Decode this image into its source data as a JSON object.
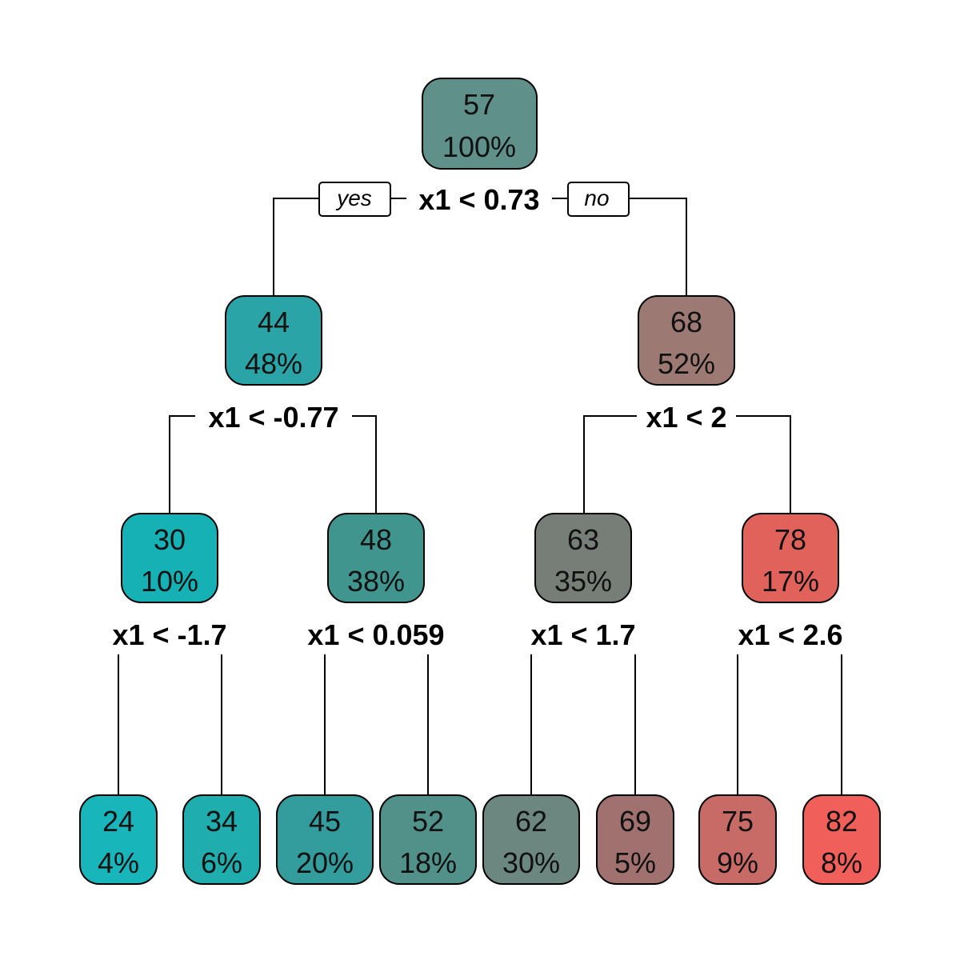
{
  "tree": {
    "root": {
      "value": "57",
      "pct": "100%",
      "color": "#5f908a",
      "split": "x1 < 0.73",
      "branch_yes": "yes",
      "branch_no": "no"
    },
    "n2": {
      "value": "44",
      "pct": "48%",
      "color": "#2aa4a6",
      "split": "x1 < -0.77"
    },
    "n3": {
      "value": "68",
      "pct": "52%",
      "color": "#9c7a73",
      "split": "x1 < 2"
    },
    "n4": {
      "value": "30",
      "pct": "10%",
      "color": "#16b1b5",
      "split": "x1 < -1.7"
    },
    "n5": {
      "value": "48",
      "pct": "38%",
      "color": "#41958f",
      "split": "x1 < 0.059"
    },
    "n6": {
      "value": "63",
      "pct": "35%",
      "color": "#777e78",
      "split": "x1 < 1.7"
    },
    "n7": {
      "value": "78",
      "pct": "17%",
      "color": "#e0625b",
      "split": "x1 < 2.6"
    },
    "l1": {
      "value": "24",
      "pct": "4%",
      "color": "#18b6bb"
    },
    "l2": {
      "value": "34",
      "pct": "6%",
      "color": "#1fadad"
    },
    "l3": {
      "value": "45",
      "pct": "20%",
      "color": "#339c9c"
    },
    "l4": {
      "value": "52",
      "pct": "18%",
      "color": "#52908a"
    },
    "l5": {
      "value": "62",
      "pct": "30%",
      "color": "#6c8680"
    },
    "l6": {
      "value": "69",
      "pct": "5%",
      "color": "#a0716e"
    },
    "l7": {
      "value": "75",
      "pct": "9%",
      "color": "#c86a65"
    },
    "l8": {
      "value": "82",
      "pct": "8%",
      "color": "#f15f5b"
    }
  }
}
